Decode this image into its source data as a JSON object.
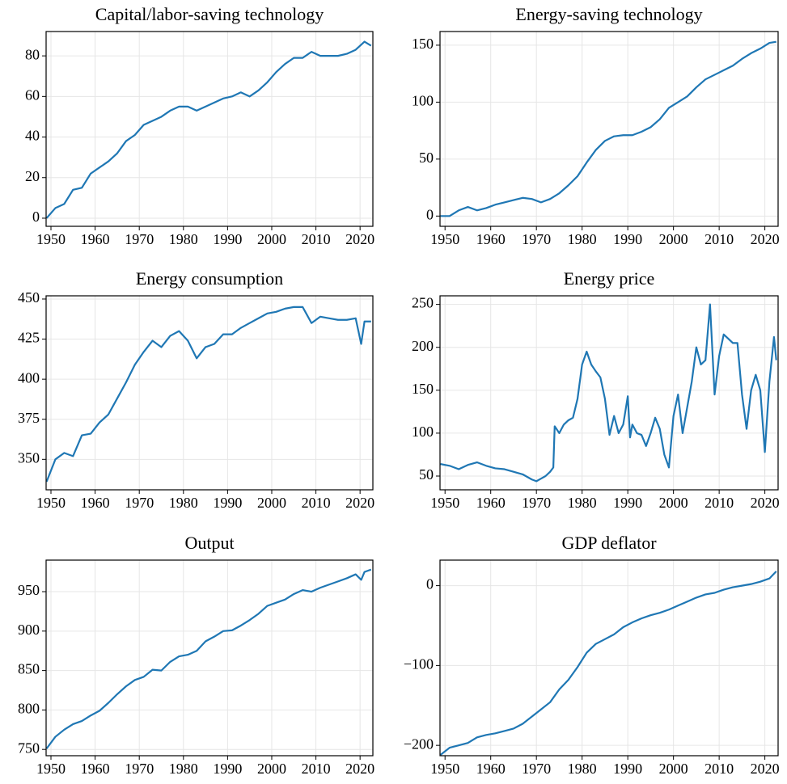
{
  "chart_data": [
    {
      "type": "line",
      "title": "Capital/labor-saving technology",
      "color": "#1f77b4",
      "grid": true,
      "x": [
        1949,
        1951,
        1953,
        1955,
        1957,
        1959,
        1961,
        1963,
        1965,
        1967,
        1969,
        1971,
        1973,
        1975,
        1977,
        1979,
        1981,
        1983,
        1985,
        1987,
        1989,
        1991,
        1993,
        1995,
        1997,
        1999,
        2001,
        2003,
        2005,
        2007,
        2009,
        2011,
        2013,
        2015,
        2017,
        2019,
        2021,
        2022.5
      ],
      "values": [
        0,
        5,
        7,
        14,
        15,
        22,
        25,
        28,
        32,
        38,
        41,
        46,
        48,
        50,
        53,
        55,
        55,
        53,
        55,
        57,
        59,
        60,
        62,
        60,
        63,
        67,
        72,
        76,
        79,
        79,
        82,
        80,
        80,
        80,
        81,
        83,
        87,
        85
      ],
      "xlim": [
        1948.9,
        2022.9
      ],
      "ylim": [
        -4,
        92
      ],
      "xticks": [
        1950,
        1960,
        1970,
        1980,
        1990,
        2000,
        2010,
        2020
      ],
      "yticks": [
        0,
        20,
        40,
        60,
        80
      ]
    },
    {
      "type": "line",
      "title": "Energy-saving technology",
      "color": "#1f77b4",
      "grid": true,
      "x": [
        1949,
        1951,
        1953,
        1955,
        1957,
        1959,
        1961,
        1963,
        1965,
        1967,
        1969,
        1971,
        1973,
        1975,
        1977,
        1979,
        1981,
        1983,
        1985,
        1987,
        1989,
        1991,
        1993,
        1995,
        1997,
        1999,
        2001,
        2003,
        2005,
        2007,
        2009,
        2011,
        2013,
        2015,
        2017,
        2019,
        2021,
        2022.5
      ],
      "values": [
        0,
        0,
        5,
        8,
        5,
        7,
        10,
        12,
        14,
        16,
        15,
        12,
        15,
        20,
        27,
        35,
        47,
        58,
        66,
        70,
        71,
        71,
        74,
        78,
        85,
        95,
        100,
        105,
        113,
        120,
        124,
        128,
        132,
        138,
        143,
        147,
        152,
        153
      ],
      "xlim": [
        1948.9,
        2022.9
      ],
      "ylim": [
        -9,
        162
      ],
      "xticks": [
        1950,
        1960,
        1970,
        1980,
        1990,
        2000,
        2010,
        2020
      ],
      "yticks": [
        0,
        50,
        100,
        150
      ]
    },
    {
      "type": "line",
      "title": "Energy consumption",
      "color": "#1f77b4",
      "grid": true,
      "x": [
        1949,
        1951,
        1953,
        1955,
        1957,
        1959,
        1961,
        1963,
        1965,
        1967,
        1969,
        1971,
        1973,
        1975,
        1977,
        1979,
        1981,
        1983,
        1985,
        1987,
        1989,
        1991,
        1993,
        1995,
        1997,
        1999,
        2001,
        2003,
        2005,
        2007,
        2009,
        2011,
        2013,
        2015,
        2017,
        2019,
        2020.25,
        2021,
        2022.5
      ],
      "values": [
        336,
        350,
        354,
        352,
        365,
        366,
        373,
        378,
        388,
        398,
        409,
        417,
        424,
        420,
        427,
        430,
        424,
        413,
        420,
        422,
        428,
        428,
        432,
        435,
        438,
        441,
        442,
        444,
        445,
        445,
        435,
        439,
        438,
        437,
        437,
        438,
        422,
        436,
        436
      ],
      "xlim": [
        1948.9,
        2022.9
      ],
      "ylim": [
        331,
        452
      ],
      "xticks": [
        1950,
        1960,
        1970,
        1980,
        1990,
        2000,
        2010,
        2020
      ],
      "yticks": [
        350,
        375,
        400,
        425,
        450
      ]
    },
    {
      "type": "line",
      "title": "Energy price",
      "color": "#1f77b4",
      "grid": true,
      "x": [
        1949,
        1951,
        1953,
        1955,
        1957,
        1959,
        1961,
        1963,
        1965,
        1967,
        1969,
        1970,
        1971,
        1972,
        1973,
        1973.7,
        1974,
        1975,
        1976,
        1977,
        1978,
        1979,
        1980,
        1981,
        1982,
        1983,
        1984,
        1985,
        1986,
        1987,
        1988,
        1989,
        1990,
        1990.5,
        1991,
        1992,
        1993,
        1994,
        1995,
        1996,
        1997,
        1998,
        1999,
        2000,
        2001,
        2002,
        2003,
        2004,
        2005,
        2006,
        2007,
        2008,
        2009,
        2010,
        2011,
        2012,
        2013,
        2014,
        2015,
        2016,
        2017,
        2018,
        2019,
        2020,
        2021,
        2022,
        2022.5
      ],
      "values": [
        64,
        62,
        58,
        63,
        66,
        62,
        59,
        58,
        55,
        52,
        46,
        44,
        47,
        50,
        55,
        60,
        108,
        100,
        110,
        115,
        118,
        140,
        180,
        195,
        180,
        172,
        165,
        140,
        98,
        120,
        100,
        110,
        143,
        95,
        110,
        100,
        98,
        85,
        100,
        118,
        105,
        75,
        60,
        120,
        145,
        100,
        130,
        160,
        200,
        180,
        185,
        250,
        145,
        190,
        215,
        210,
        205,
        205,
        145,
        105,
        150,
        168,
        150,
        78,
        160,
        212,
        185
      ],
      "xlim": [
        1948.9,
        2022.9
      ],
      "ylim": [
        34,
        260
      ],
      "xticks": [
        1950,
        1960,
        1970,
        1980,
        1990,
        2000,
        2010,
        2020
      ],
      "yticks": [
        50,
        100,
        150,
        200,
        250
      ]
    },
    {
      "type": "line",
      "title": "Output",
      "color": "#1f77b4",
      "grid": true,
      "x": [
        1949,
        1951,
        1953,
        1955,
        1957,
        1959,
        1961,
        1963,
        1965,
        1967,
        1969,
        1971,
        1973,
        1975,
        1977,
        1979,
        1981,
        1983,
        1985,
        1987,
        1989,
        1991,
        1993,
        1995,
        1997,
        1999,
        2001,
        2003,
        2005,
        2007,
        2009,
        2011,
        2013,
        2015,
        2017,
        2019,
        2020.25,
        2021,
        2022.5
      ],
      "values": [
        751,
        766,
        775,
        782,
        786,
        793,
        799,
        809,
        820,
        830,
        838,
        842,
        851,
        850,
        861,
        868,
        870,
        875,
        887,
        893,
        900,
        901,
        907,
        914,
        922,
        932,
        936,
        940,
        947,
        952,
        950,
        955,
        959,
        963,
        967,
        972,
        965,
        975,
        978
      ],
      "xlim": [
        1948.9,
        2022.9
      ],
      "ylim": [
        742,
        990
      ],
      "xticks": [
        1950,
        1960,
        1970,
        1980,
        1990,
        2000,
        2010,
        2020
      ],
      "yticks": [
        750,
        800,
        850,
        900,
        950
      ]
    },
    {
      "type": "line",
      "title": "GDP deflator",
      "color": "#1f77b4",
      "grid": true,
      "x": [
        1949,
        1951,
        1953,
        1955,
        1957,
        1959,
        1961,
        1963,
        1965,
        1967,
        1969,
        1971,
        1973,
        1975,
        1977,
        1979,
        1981,
        1983,
        1985,
        1987,
        1989,
        1991,
        1993,
        1995,
        1997,
        1999,
        2001,
        2003,
        2005,
        2007,
        2009,
        2011,
        2013,
        2015,
        2017,
        2019,
        2021,
        2022.5
      ],
      "values": [
        -212,
        -203,
        -200,
        -197,
        -190,
        -187,
        -185,
        -182,
        -179,
        -173,
        -164,
        -155,
        -146,
        -130,
        -118,
        -102,
        -84,
        -73,
        -67,
        -61,
        -52,
        -46,
        -41,
        -37,
        -34,
        -30,
        -25,
        -20,
        -15,
        -11,
        -9,
        -5,
        -2,
        0,
        2,
        5,
        9,
        18
      ],
      "xlim": [
        1948.9,
        2022.9
      ],
      "ylim": [
        -213,
        32
      ],
      "xticks": [
        1950,
        1960,
        1970,
        1980,
        1990,
        2000,
        2010,
        2020
      ],
      "yticks": [
        {
          "value": -200,
          "label": "−200"
        },
        {
          "value": -100,
          "label": "−100"
        },
        0
      ]
    }
  ]
}
